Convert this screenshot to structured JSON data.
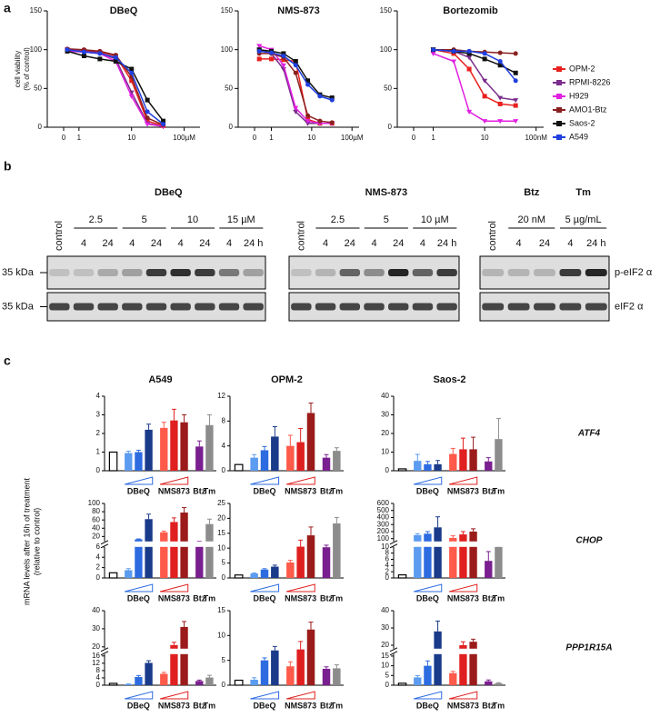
{
  "panel_labels": [
    "a",
    "b",
    "c"
  ],
  "chart_data": [
    {
      "type": "line",
      "title": "DBeQ",
      "ylabel": [
        "cell viability",
        "(% of control)"
      ],
      "xscale": "log",
      "x": [
        0.6,
        1.25,
        2.5,
        5,
        10,
        20,
        40
      ],
      "xlim": [
        0.25,
        200
      ],
      "xticks": [
        0,
        1,
        10,
        {
          "value": 100,
          "label": "100µM"
        }
      ],
      "ylim": [
        0,
        150
      ],
      "yticks": [
        0,
        50,
        100,
        150
      ],
      "series": [
        {
          "color": "#e8211f",
          "values": [
            100,
            99,
            97,
            92,
            60,
            8,
            2
          ]
        },
        {
          "color": "#7b2c8c",
          "values": [
            100,
            98,
            96,
            88,
            45,
            5,
            1
          ]
        },
        {
          "color": "#e020e0",
          "values": [
            98,
            97,
            95,
            85,
            40,
            4,
            1
          ]
        },
        {
          "color": "#8b2020",
          "values": [
            101,
            100,
            98,
            93,
            65,
            12,
            3
          ]
        },
        {
          "color": "#111111",
          "values": [
            98,
            92,
            88,
            85,
            75,
            35,
            8
          ]
        },
        {
          "color": "#1f3fe0",
          "values": [
            100,
            97,
            95,
            90,
            70,
            20,
            4
          ]
        }
      ]
    },
    {
      "type": "line",
      "title": "NMS-873",
      "xscale": "log",
      "x": [
        0.5,
        1,
        2,
        4,
        8,
        16,
        32
      ],
      "xlim": [
        0.15,
        150
      ],
      "xticks": [
        0,
        1,
        10,
        {
          "value": 100,
          "label": "100µM"
        }
      ],
      "ylim": [
        0,
        150
      ],
      "yticks": [
        0,
        50,
        100,
        150
      ],
      "series": [
        {
          "color": "#e8211f",
          "values": [
            88,
            88,
            87,
            85,
            10,
            5,
            5
          ]
        },
        {
          "color": "#7b2c8c",
          "values": [
            100,
            95,
            75,
            20,
            5,
            5,
            5
          ]
        },
        {
          "color": "#e020e0",
          "values": [
            105,
            100,
            80,
            25,
            8,
            5,
            5
          ]
        },
        {
          "color": "#8b2020",
          "values": [
            95,
            95,
            90,
            70,
            15,
            8,
            6
          ]
        },
        {
          "color": "#111111",
          "values": [
            100,
            98,
            95,
            85,
            60,
            42,
            38
          ]
        },
        {
          "color": "#1f3fe0",
          "values": [
            98,
            96,
            92,
            80,
            55,
            40,
            35
          ]
        }
      ]
    },
    {
      "type": "line",
      "title": "Bortezomib",
      "xscale": "log",
      "legend": "right",
      "x": [
        1,
        2.5,
        5,
        10,
        20,
        40
      ],
      "xlim": [
        0.2,
        140
      ],
      "xticks": [
        0,
        1,
        10,
        {
          "value": 100,
          "label": "100nM"
        }
      ],
      "ylim": [
        0,
        150
      ],
      "yticks": [
        0,
        50,
        100,
        150
      ],
      "series": [
        {
          "name": "OPM-2",
          "color": "#e8211f",
          "values": [
            100,
            95,
            75,
            40,
            30,
            28
          ]
        },
        {
          "name": "RPMI-8226",
          "color": "#7b2c8c",
          "values": [
            100,
            98,
            90,
            60,
            38,
            35
          ]
        },
        {
          "name": "H929",
          "color": "#e020e0",
          "values": [
            95,
            85,
            20,
            8,
            8,
            8
          ]
        },
        {
          "name": "AMO1-Btz",
          "color": "#8b2020",
          "values": [
            100,
            100,
            98,
            97,
            96,
            95
          ]
        },
        {
          "name": "Saos-2",
          "color": "#111111",
          "values": [
            100,
            98,
            95,
            88,
            80,
            70
          ]
        },
        {
          "name": "A549",
          "color": "#1f3fe0",
          "values": [
            100,
            98,
            98,
            95,
            85,
            60
          ]
        }
      ]
    },
    {
      "type": "bar",
      "title": "A549",
      "ylim": [
        0,
        4
      ],
      "yticks": [
        0,
        1,
        2,
        3,
        4
      ],
      "values": [
        1,
        0.95,
        1.0,
        2.2,
        2.3,
        2.7,
        2.6,
        1.3,
        2.45
      ],
      "errors": [
        0,
        0.1,
        0.1,
        0.3,
        0.3,
        0.6,
        0.4,
        0.3,
        0.55
      ],
      "colors": [
        "#ffffff",
        "#5b9bf0",
        "#2d6be0",
        "#1a3a8a",
        "#ff5a4a",
        "#e02020",
        "#9b1b1b",
        "#7a1f8f",
        "#8c8c8c"
      ],
      "groups": [
        "DBeQ",
        "NMS873",
        "Btz",
        "Tm"
      ]
    },
    {
      "type": "bar",
      "title": "OPM-2",
      "ylim": [
        0,
        12
      ],
      "yticks": [
        0,
        4,
        8,
        12
      ],
      "values": [
        1,
        2.1,
        3.3,
        5.5,
        4.0,
        4.6,
        9.3,
        2.1,
        3.2
      ],
      "errors": [
        0,
        0.5,
        0.6,
        1.6,
        1.7,
        2.2,
        1.6,
        0.5,
        0.5
      ],
      "colors": [
        "#ffffff",
        "#5b9bf0",
        "#2d6be0",
        "#1a3a8a",
        "#ff5a4a",
        "#e02020",
        "#9b1b1b",
        "#7a1f8f",
        "#8c8c8c"
      ],
      "groups": [
        "DBeQ",
        "NMS873",
        "Btz",
        "Tm"
      ]
    },
    {
      "type": "bar",
      "title": "Saos-2",
      "annotation": "ATF4",
      "ylim": [
        0,
        40
      ],
      "yticks": [
        0,
        10,
        20,
        30,
        40
      ],
      "values": [
        1,
        5.3,
        3.5,
        3.5,
        9,
        11.5,
        11.5,
        5,
        17
      ],
      "errors": [
        0,
        3.5,
        1.5,
        2,
        3,
        6,
        6.5,
        2,
        11
      ],
      "colors": [
        "#ffffff",
        "#5b9bf0",
        "#2d6be0",
        "#1a3a8a",
        "#ff5a4a",
        "#e02020",
        "#9b1b1b",
        "#7a1f8f",
        "#8c8c8c"
      ],
      "groups": [
        "DBeQ",
        "NMS873",
        "Btz",
        "Tm"
      ]
    },
    {
      "type": "bar",
      "ylabel": [
        "mRNA levels after 16h of treatment",
        "(relative to control)"
      ],
      "ylim": [
        0,
        100
      ],
      "ybreak": [
        6,
        8
      ],
      "yticks": [
        0,
        2,
        4,
        6,
        20,
        40,
        60,
        80,
        100
      ],
      "values": [
        1,
        1.5,
        13,
        62,
        30,
        55,
        78,
        7,
        50
      ],
      "errors": [
        0,
        0.3,
        1,
        12,
        3,
        10,
        12,
        1.5,
        12
      ],
      "colors": [
        "#ffffff",
        "#5b9bf0",
        "#2d6be0",
        "#1a3a8a",
        "#ff5a4a",
        "#e02020",
        "#9b1b1b",
        "#7a1f8f",
        "#8c8c8c"
      ],
      "groups": [
        "DBeQ",
        "NMS873",
        "Btz",
        "Tm"
      ]
    },
    {
      "type": "bar",
      "ylim": [
        0,
        25
      ],
      "yticks": [
        0,
        5,
        10,
        15,
        20,
        25
      ],
      "values": [
        1,
        1.5,
        2.8,
        3.8,
        5.2,
        10.5,
        14.3,
        10.3,
        18.3
      ],
      "errors": [
        0,
        0.2,
        0.3,
        0.5,
        0.7,
        2.2,
        2.8,
        0.7,
        2
      ],
      "colors": [
        "#ffffff",
        "#5b9bf0",
        "#2d6be0",
        "#1a3a8a",
        "#ff5a4a",
        "#e02020",
        "#9b1b1b",
        "#7a1f8f",
        "#8c8c8c"
      ],
      "groups": [
        "DBeQ",
        "NMS873",
        "Btz",
        "Tm"
      ]
    },
    {
      "type": "bar",
      "annotation": "CHOP",
      "ylim": [
        0,
        600
      ],
      "ybreak": [
        10,
        60
      ],
      "yticks": [
        0,
        2,
        4,
        6,
        8,
        10,
        100,
        200,
        300,
        400,
        500,
        600
      ],
      "values": [
        1,
        150,
        170,
        260,
        110,
        160,
        200,
        5.5,
        11
      ],
      "errors": [
        0,
        20,
        30,
        150,
        30,
        40,
        40,
        3,
        1
      ],
      "colors": [
        "#ffffff",
        "#5b9bf0",
        "#2d6be0",
        "#1a3a8a",
        "#ff5a4a",
        "#e02020",
        "#9b1b1b",
        "#7a1f8f",
        "#8c8c8c"
      ],
      "groups": [
        "DBeQ",
        "NMS873",
        "Btz",
        "Tm"
      ]
    },
    {
      "type": "bar",
      "ylim": [
        0,
        40
      ],
      "ybreak": [
        17,
        19
      ],
      "yticks": [
        0,
        4,
        8,
        12,
        16,
        20,
        30,
        40
      ],
      "values": [
        1,
        0.5,
        4.5,
        12.2,
        6.2,
        21,
        31,
        2.3,
        4.2
      ],
      "errors": [
        0,
        0.2,
        0.8,
        1.2,
        0.8,
        1.5,
        3,
        0.5,
        1.2
      ],
      "colors": [
        "#ffffff",
        "#5b9bf0",
        "#2d6be0",
        "#1a3a8a",
        "#ff5a4a",
        "#e02020",
        "#9b1b1b",
        "#7a1f8f",
        "#8c8c8c"
      ],
      "groups": [
        "DBeQ",
        "NMS873",
        "Btz",
        "Tm"
      ]
    },
    {
      "type": "bar",
      "ylim": [
        0,
        15
      ],
      "yticks": [
        0,
        5,
        10,
        15
      ],
      "values": [
        1,
        1.1,
        5,
        7,
        3.8,
        7.2,
        11.2,
        3.3,
        3.4
      ],
      "errors": [
        0,
        0.4,
        0.5,
        0.8,
        0.9,
        1.6,
        1.5,
        0.4,
        0.7
      ],
      "colors": [
        "#ffffff",
        "#5b9bf0",
        "#2d6be0",
        "#1a3a8a",
        "#ff5a4a",
        "#e02020",
        "#9b1b1b",
        "#7a1f8f",
        "#8c8c8c"
      ],
      "groups": [
        "DBeQ",
        "NMS873",
        "Btz",
        "Tm"
      ]
    },
    {
      "type": "bar",
      "annotation": "PPP1R15A",
      "ylim": [
        0,
        40
      ],
      "ybreak": [
        16,
        18
      ],
      "yticks": [
        0,
        5,
        10,
        15,
        20,
        30,
        40
      ],
      "values": [
        1,
        4,
        10,
        28,
        6.2,
        20,
        22,
        2,
        1
      ],
      "errors": [
        0,
        0.9,
        2.5,
        6,
        0.9,
        2,
        1.5,
        0.7,
        0.3
      ],
      "colors": [
        "#ffffff",
        "#5b9bf0",
        "#2d6be0",
        "#1a3a8a",
        "#ff5a4a",
        "#e02020",
        "#9b1b1b",
        "#7a1f8f",
        "#8c8c8c"
      ],
      "groups": [
        "DBeQ",
        "NMS873",
        "Btz",
        "Tm"
      ]
    }
  ],
  "blots": {
    "markers": [
      "35 kDa",
      "35 kDa"
    ],
    "rows": [
      "p-eIF2 α",
      "eIF2 α"
    ],
    "panels": [
      {
        "title": "DBeQ",
        "control": "control",
        "doses": [
          {
            "label": "2.5",
            "times": [
              "4",
              "24"
            ]
          },
          {
            "label": "5",
            "times": [
              "4",
              "24"
            ]
          },
          {
            "label": "10",
            "times": [
              "4",
              "24"
            ]
          },
          {
            "label": "15 µM",
            "times": [
              "4",
              "24 h"
            ]
          }
        ]
      },
      {
        "title": "NMS-873",
        "control": "control",
        "doses": [
          {
            "label": "2.5",
            "times": [
              "4",
              "24"
            ]
          },
          {
            "label": "5",
            "times": [
              "4",
              "24"
            ]
          },
          {
            "label": "10 µM",
            "times": [
              "4",
              "24 h"
            ]
          }
        ]
      },
      {
        "control": "control",
        "doses": [
          {
            "drug": "Btz",
            "label": "20 nM",
            "times": [
              "4",
              "24"
            ]
          },
          {
            "drug": "Tm",
            "label": "5 µg/mL",
            "times": [
              "4",
              "24 h"
            ]
          }
        ]
      }
    ]
  }
}
